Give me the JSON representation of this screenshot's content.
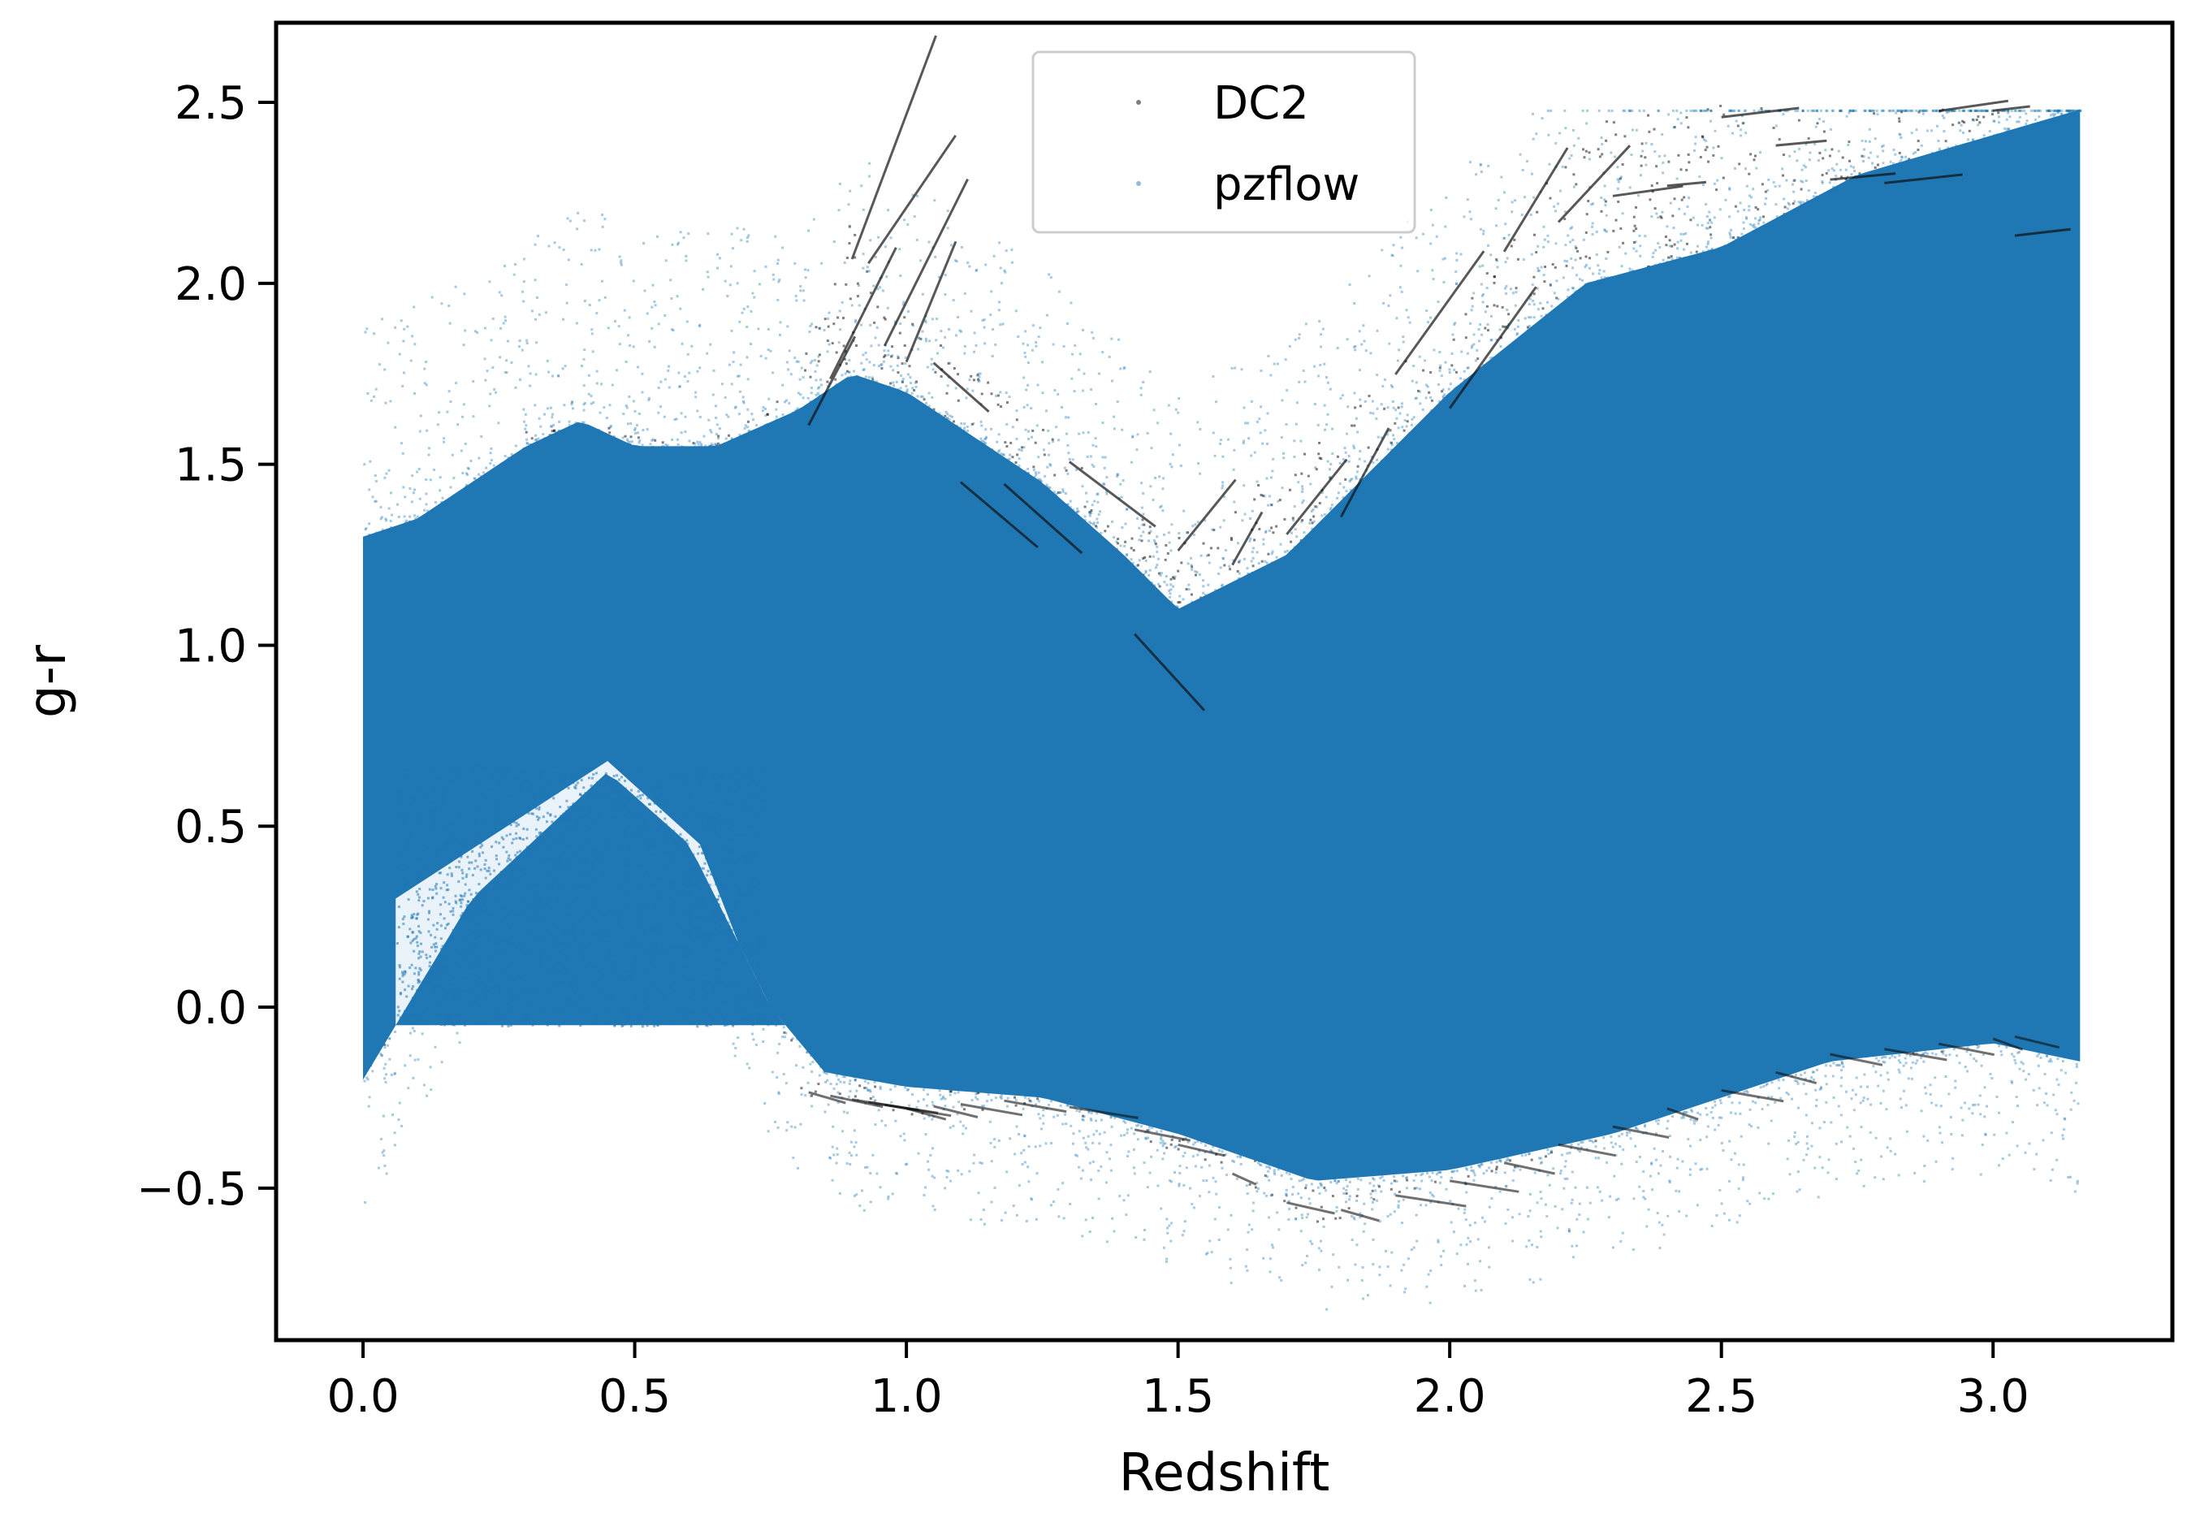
{
  "chart_data": {
    "type": "scatter",
    "xlabel": "Redshift",
    "ylabel": "g-r",
    "xlim": [
      -0.16,
      3.33
    ],
    "ylim": [
      -0.92,
      2.72
    ],
    "xticks": [
      0.0,
      0.5,
      1.0,
      1.5,
      2.0,
      2.5,
      3.0
    ],
    "xtick_labels": [
      "0.0",
      "0.5",
      "1.0",
      "1.5",
      "2.0",
      "2.5",
      "3.0"
    ],
    "yticks": [
      -0.5,
      0.0,
      0.5,
      1.0,
      1.5,
      2.0,
      2.5
    ],
    "ytick_labels": [
      "−0.5",
      "0.0",
      "0.5",
      "1.0",
      "1.5",
      "2.0",
      "2.5"
    ],
    "grid": false,
    "legend_position": "top-center",
    "series": [
      {
        "name": "DC2",
        "color": "#000000",
        "x_range": [
          0.0,
          3.05
        ],
        "upper_envelope": {
          "x": [
            0.0,
            0.1,
            0.2,
            0.3,
            0.4,
            0.5,
            0.65,
            0.8,
            0.9,
            1.0,
            1.1,
            1.25,
            1.4,
            1.5,
            1.7,
            2.0,
            2.25,
            2.5,
            3.05
          ],
          "y": [
            1.0,
            1.2,
            1.4,
            1.6,
            1.65,
            1.58,
            1.58,
            1.75,
            2.2,
            1.9,
            1.8,
            1.6,
            1.38,
            1.3,
            1.5,
            1.9,
            2.45,
            2.5,
            2.48
          ]
        },
        "lower_envelope": {
          "x": [
            0.0,
            0.2,
            0.45,
            0.6,
            0.75,
            0.8,
            1.0,
            1.25,
            1.5,
            1.75,
            2.0,
            2.3,
            2.7,
            3.05
          ],
          "y": [
            -0.2,
            0.3,
            0.65,
            0.45,
            0.0,
            -0.25,
            -0.3,
            -0.27,
            -0.4,
            -0.6,
            -0.5,
            -0.35,
            -0.15,
            -0.1
          ]
        }
      },
      {
        "name": "pzflow",
        "color": "#1f77b4",
        "x_range": [
          0.0,
          3.16
        ],
        "upper_envelope": {
          "x": [
            0.0,
            0.1,
            0.2,
            0.3,
            0.4,
            0.5,
            0.65,
            0.8,
            0.9,
            1.0,
            1.1,
            1.25,
            1.4,
            1.5,
            1.7,
            2.0,
            2.25,
            2.5,
            2.75,
            3.16
          ],
          "y": [
            1.3,
            1.35,
            1.45,
            1.55,
            1.62,
            1.55,
            1.55,
            1.65,
            1.75,
            1.7,
            1.6,
            1.45,
            1.25,
            1.1,
            1.25,
            1.7,
            2.0,
            2.1,
            2.3,
            2.48
          ]
        },
        "lower_envelope": {
          "x": [
            0.0,
            0.2,
            0.45,
            0.6,
            0.75,
            0.85,
            1.0,
            1.25,
            1.5,
            1.75,
            2.0,
            2.3,
            2.7,
            3.0,
            3.16
          ],
          "y": [
            -0.2,
            0.3,
            0.65,
            0.45,
            0.0,
            -0.18,
            -0.22,
            -0.25,
            -0.35,
            -0.48,
            -0.45,
            -0.35,
            -0.15,
            -0.1,
            -0.15
          ]
        }
      }
    ]
  }
}
